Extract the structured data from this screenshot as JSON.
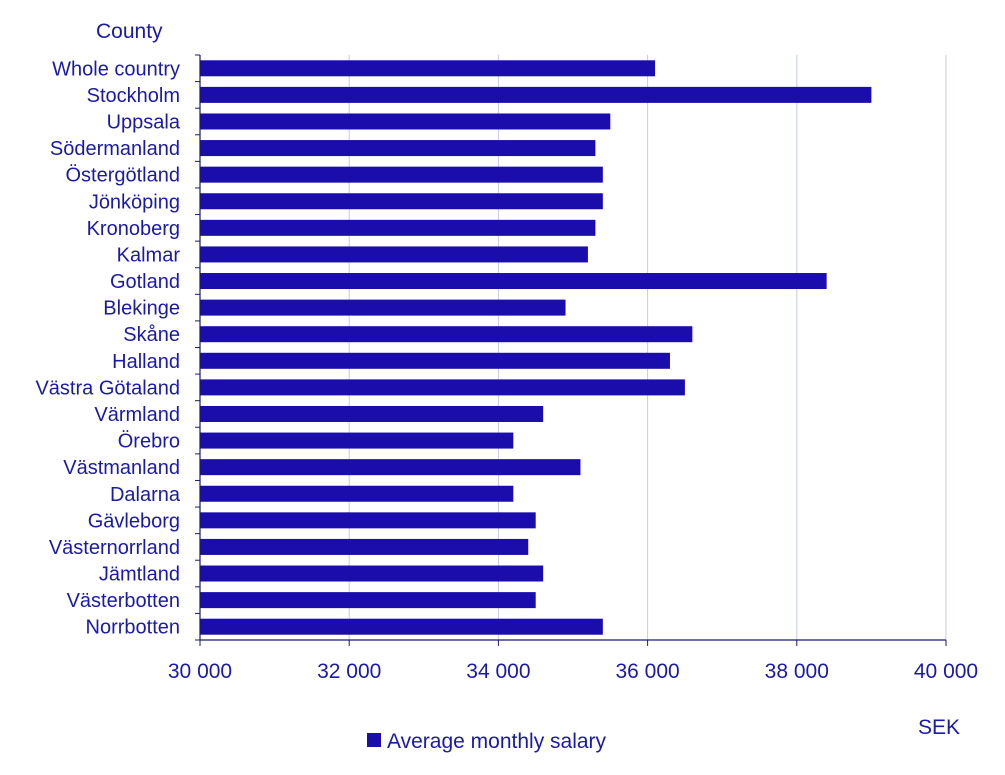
{
  "chart_data": {
    "type": "bar",
    "orientation": "horizontal",
    "title": "",
    "ylabel": "County",
    "xlabel": "SEK",
    "xlim": [
      30000,
      40000
    ],
    "xticks": [
      30000,
      32000,
      34000,
      36000,
      38000,
      40000
    ],
    "xtick_labels": [
      "30 000",
      "32 000",
      "34 000",
      "36 000",
      "38 000",
      "40 000"
    ],
    "grid": "vertical",
    "legend_position": "bottom",
    "categories": [
      "Whole country",
      "Stockholm",
      "Uppsala",
      "Södermanland",
      "Östergötland",
      "Jönköping",
      "Kronoberg",
      "Kalmar",
      "Gotland",
      "Blekinge",
      "Skåne",
      "Halland",
      "Västra Götaland",
      "Värmland",
      "Örebro",
      "Västmanland",
      "Dalarna",
      "Gävleborg",
      "Västernorrland",
      "Jämtland",
      "Västerbotten",
      "Norrbotten"
    ],
    "series": [
      {
        "name": "Average monthly salary",
        "color": "#1a0dab",
        "values": [
          36100,
          39000,
          35500,
          35300,
          35400,
          35400,
          35300,
          35200,
          38400,
          34900,
          36600,
          36300,
          36500,
          34600,
          34200,
          35100,
          34200,
          34500,
          34400,
          34600,
          34500,
          35400
        ]
      }
    ]
  },
  "colors": {
    "bar": "#1a0dab",
    "text": "#1a1aa6",
    "grid": "#c8c8e6",
    "axis": "#1a1a6e"
  }
}
